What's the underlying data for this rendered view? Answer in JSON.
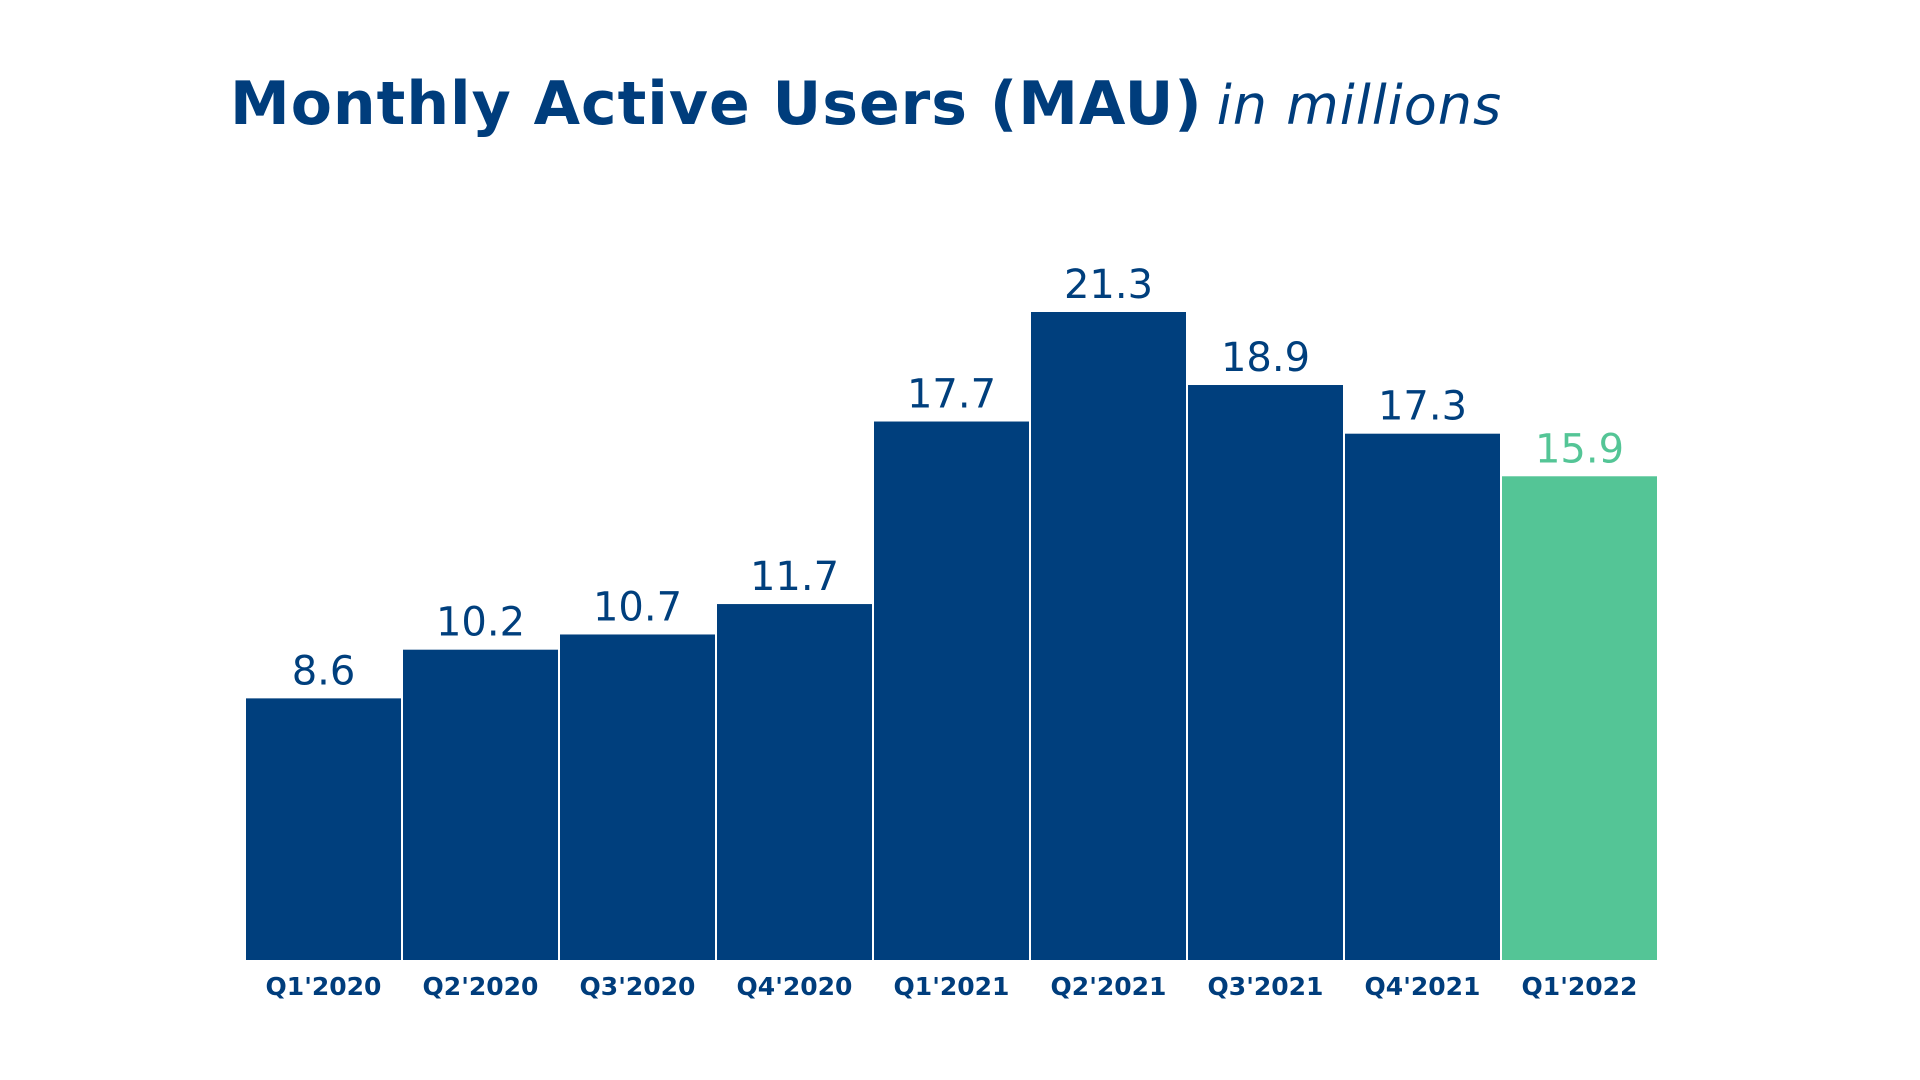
{
  "chart_data": {
    "type": "bar",
    "title": "Monthly Active Users (MAU)",
    "subtitle": "in millions",
    "xlabel": "",
    "ylabel": "",
    "ylim": [
      0,
      21.3
    ],
    "grid": false,
    "legend": "none",
    "categories": [
      "Q1'2020",
      "Q2'2020",
      "Q3'2020",
      "Q4'2020",
      "Q1'2021",
      "Q2'2021",
      "Q3'2021",
      "Q4'2021",
      "Q1'2022"
    ],
    "values": [
      8.6,
      10.2,
      10.7,
      11.7,
      17.7,
      21.3,
      18.9,
      17.3,
      15.9
    ],
    "value_labels": [
      "8.6",
      "10.2",
      "10.7",
      "11.7",
      "17.7",
      "21.3",
      "18.9",
      "17.3",
      "15.9"
    ],
    "colors": {
      "primary": "#003f7d",
      "highlight": "#54c596",
      "title": "#003d7c",
      "tick_text": "#003d7c"
    },
    "highlight_index": 8
  }
}
